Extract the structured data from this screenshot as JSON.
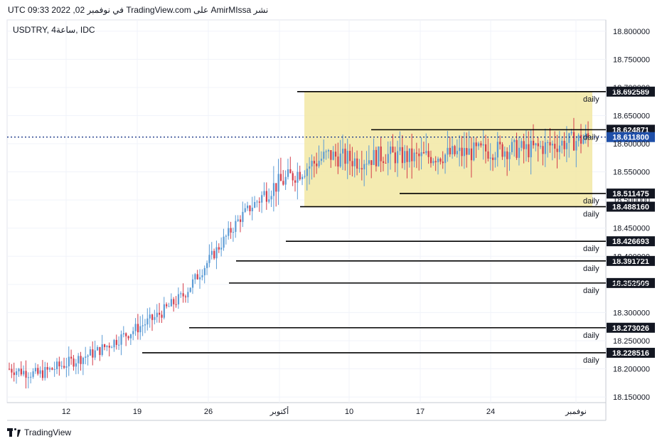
{
  "caption": "نشر AmirMIssa على TradingView.com في نوفمبر 02, 2022 09:33 UTC",
  "symbol_line": "USDTRY, 4ساعة, IDC",
  "brand": "TradingView",
  "chart_data": {
    "type": "candlestick",
    "symbol": "USDTRY",
    "interval": "4ساعة",
    "source": "IDC",
    "ylim": [
      18.14,
      18.82
    ],
    "y_ticks": [
      18.8,
      18.75,
      18.7,
      18.65,
      18.6,
      18.55,
      18.5,
      18.45,
      18.4,
      18.35,
      18.3,
      18.25,
      18.2,
      18.15
    ],
    "y_tick_labels": [
      "18.800000",
      "18.750000",
      "18.700000",
      "18.650000",
      "18.600000",
      "18.550000",
      "18.500000",
      "18.450000",
      "18.400000",
      "18.350000",
      "18.300000",
      "18.250000",
      "18.200000",
      "18.150000"
    ],
    "x_ticks": [
      "12",
      "19",
      "26",
      "أكتوبر",
      "10",
      "17",
      "24",
      "نوفمبر"
    ],
    "current_price": 18.6118,
    "current_price_label": "18.611800",
    "range_box": {
      "from_tick": "أكتوبر",
      "top": 18.6926,
      "bottom": 18.4882,
      "color": "#f2e7a3"
    },
    "levels": [
      {
        "value": 18.692589,
        "label": "18.692589",
        "tag": "daily"
      },
      {
        "value": 18.624871,
        "label": "18.624871",
        "tag": "daily"
      },
      {
        "value": 18.511475,
        "label": "18.511475",
        "tag": "daily"
      },
      {
        "value": 18.48816,
        "label": "18.488160",
        "tag": "daily"
      },
      {
        "value": 18.426693,
        "label": "18.426693",
        "tag": "daily"
      },
      {
        "value": 18.391721,
        "label": "18.391721",
        "tag": "daily"
      },
      {
        "value": 18.352509,
        "label": "18.352509",
        "tag": "daily"
      },
      {
        "value": 18.273026,
        "label": "18.273026",
        "tag": "daily"
      },
      {
        "value": 18.228516,
        "label": "18.228516",
        "tag": "daily"
      }
    ],
    "up_color": "#5b9bd5",
    "down_color": "#d43c4a",
    "trend_path": [
      18.2,
      18.19,
      18.21,
      18.23,
      18.26,
      18.29,
      18.33,
      18.4,
      18.47,
      18.52,
      18.55,
      18.58,
      18.57,
      18.58,
      18.575,
      18.58,
      18.585,
      18.59,
      18.59,
      18.6,
      18.61
    ]
  }
}
